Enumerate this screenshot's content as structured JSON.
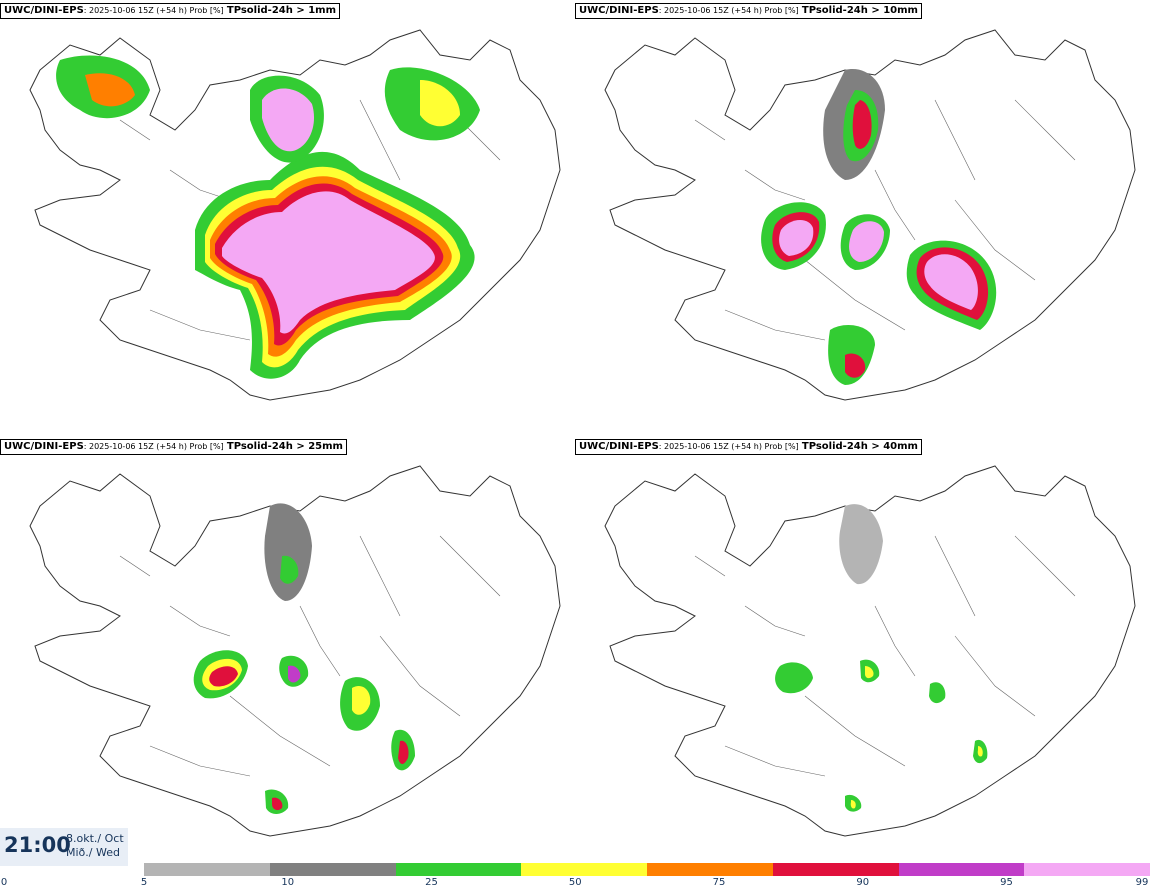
{
  "panels": [
    {
      "model": "UWC/DINI-EPS",
      "run": ": 2025-10-06 15Z (+54 h) Prob [%]",
      "param": "TPsolid-24h > 1mm"
    },
    {
      "model": "UWC/DINI-EPS",
      "run": ": 2025-10-06 15Z (+54 h) Prob [%]",
      "param": "TPsolid-24h > 10mm"
    },
    {
      "model": "UWC/DINI-EPS",
      "run": ": 2025-10-06 15Z (+54 h) Prob [%]",
      "param": "TPsolid-24h > 25mm"
    },
    {
      "model": "UWC/DINI-EPS",
      "run": ": 2025-10-06 15Z (+54 h) Prob [%]",
      "param": "TPsolid-24h > 40mm"
    }
  ],
  "valid_time": {
    "time": "21:00",
    "date_line1": "8.okt./ Oct",
    "date_line2": "Mið./ Wed"
  },
  "legend": {
    "ticks": [
      "0",
      "5",
      "10",
      "25",
      "50",
      "75",
      "90",
      "95",
      "99"
    ],
    "colors": [
      "#b4b4b4",
      "#808080",
      "#33cc33",
      "#ffff33",
      "#ff7f00",
      "#e0103c",
      "#c03cc8",
      "#f4a8f4"
    ]
  }
}
